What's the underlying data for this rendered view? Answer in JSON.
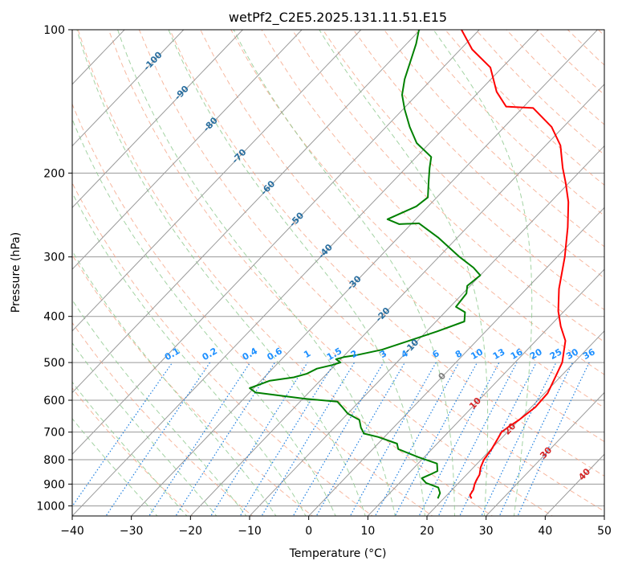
{
  "chart_data": {
    "type": "line",
    "title": "wetPf2_C2E5.2025.131.11.51.E15",
    "xlabel": "Temperature (°C)",
    "ylabel": "Pressure (hPa)",
    "xlim": [
      -40,
      50
    ],
    "ylim": [
      1050,
      100
    ],
    "y_scale": "log",
    "grid": true,
    "x_ticks": [
      "−40",
      "−30",
      "−20",
      "−10",
      "0",
      "10",
      "20",
      "30",
      "40",
      "50"
    ],
    "x_tick_values": [
      -40,
      -30,
      -20,
      -10,
      0,
      10,
      20,
      30,
      40,
      50
    ],
    "y_ticks": [
      "100",
      "200",
      "300",
      "400",
      "500",
      "600",
      "700",
      "800",
      "900",
      "1000"
    ],
    "y_tick_values": [
      100,
      200,
      300,
      400,
      500,
      600,
      700,
      800,
      900,
      1000
    ],
    "colors": {
      "temperature": "#ff0000",
      "dewpoint": "#008000",
      "isotherm": "#9a9a9a",
      "dry_adiabat": "#f4a080",
      "moist_adiabat": "#8cc88c",
      "mixing_ratio": "#1e7fe0",
      "isotherm_label": "#2a6fa0",
      "mixing_label": "#1e90ff",
      "warm_label": "#d62728",
      "zero_label": "#808080"
    },
    "series": [
      {
        "key": "temperature",
        "points": [
          [
            24.7,
            965
          ],
          [
            23.9,
            950
          ],
          [
            23.6,
            925
          ],
          [
            22.9,
            900
          ],
          [
            22.5,
            880
          ],
          [
            22.2,
            860
          ],
          [
            21.2,
            830
          ],
          [
            20.5,
            800
          ],
          [
            20.1,
            760
          ],
          [
            19.4,
            720
          ],
          [
            19.0,
            700
          ],
          [
            19.4,
            680
          ],
          [
            20.0,
            660
          ],
          [
            20.7,
            620
          ],
          [
            20.5,
            580
          ],
          [
            19.3,
            540
          ],
          [
            18.0,
            500
          ],
          [
            15.0,
            450
          ],
          [
            11.9,
            420
          ],
          [
            9.0,
            390
          ],
          [
            5.5,
            350
          ],
          [
            1.3,
            300
          ],
          [
            -3.0,
            260
          ],
          [
            -7.0,
            230
          ],
          [
            -10.5,
            210
          ],
          [
            -13.5,
            195
          ],
          [
            -17.5,
            175
          ],
          [
            -22.0,
            160
          ],
          [
            -28.2,
            146
          ],
          [
            -33.0,
            145
          ],
          [
            -37.0,
            135
          ],
          [
            -42.0,
            120
          ],
          [
            -48.0,
            110
          ],
          [
            -53.0,
            100
          ]
        ]
      },
      {
        "key": "dewpoint",
        "points": [
          [
            19.0,
            965
          ],
          [
            18.5,
            940
          ],
          [
            17.3,
            915
          ],
          [
            14.5,
            895
          ],
          [
            13.0,
            875
          ],
          [
            13.8,
            860
          ],
          [
            14.5,
            845
          ],
          [
            13.2,
            815
          ],
          [
            9.0,
            790
          ],
          [
            4.3,
            760
          ],
          [
            3.2,
            740
          ],
          [
            -1.0,
            717
          ],
          [
            -4.0,
            705
          ],
          [
            -5.5,
            685
          ],
          [
            -7.0,
            660
          ],
          [
            -10.0,
            640
          ],
          [
            -12.0,
            620
          ],
          [
            -13.7,
            604
          ],
          [
            -20.0,
            595
          ],
          [
            -29.0,
            578
          ],
          [
            -30.7,
            566
          ],
          [
            -28.5,
            546
          ],
          [
            -25.0,
            537
          ],
          [
            -23.4,
            528
          ],
          [
            -22.5,
            515
          ],
          [
            -20.5,
            506
          ],
          [
            -19.5,
            500
          ],
          [
            -20.8,
            492
          ],
          [
            -19.8,
            487
          ],
          [
            -17.9,
            482
          ],
          [
            -14.6,
            470
          ],
          [
            -11.6,
            451
          ],
          [
            -8.2,
            430
          ],
          [
            -5.2,
            410
          ],
          [
            -6.6,
            392
          ],
          [
            -9.0,
            382
          ],
          [
            -9.4,
            358
          ],
          [
            -10.5,
            345
          ],
          [
            -10.0,
            328
          ],
          [
            -12.4,
            316
          ],
          [
            -16.5,
            300
          ],
          [
            -23.3,
            273
          ],
          [
            -28.8,
            255
          ],
          [
            -32.0,
            256
          ],
          [
            -34.8,
            250
          ],
          [
            -32.0,
            235
          ],
          [
            -31.5,
            225
          ],
          [
            -34.0,
            208
          ],
          [
            -36.0,
            195
          ],
          [
            -37.5,
            185
          ],
          [
            -42.2,
            173
          ],
          [
            -46.0,
            160
          ],
          [
            -49.7,
            147
          ],
          [
            -52.5,
            137
          ],
          [
            -54.6,
            127
          ],
          [
            -56.8,
            115
          ],
          [
            -58.4,
            107
          ],
          [
            -60.2,
            100
          ]
        ]
      }
    ],
    "isotherm_labels": [
      "-100",
      "-90",
      "-80",
      "-70",
      "-60",
      "-50",
      "-40",
      "-30",
      "-20",
      "-10"
    ],
    "isotherm_label_values": [
      -100,
      -90,
      -80,
      -70,
      -60,
      -50,
      -40,
      -30,
      -20,
      -10
    ],
    "mixing_ratio_labels": [
      "0.1",
      "0.2",
      "0.4",
      "0.6",
      "1",
      "1.5",
      "2",
      "3",
      "4",
      "6",
      "8",
      "10",
      "13",
      "16",
      "20",
      "25",
      "30",
      "36"
    ],
    "mixing_ratio_values": [
      0.1,
      0.2,
      0.4,
      0.6,
      1,
      1.5,
      2,
      3,
      4,
      6,
      8,
      10,
      13,
      16,
      20,
      25,
      30,
      36
    ],
    "zero_label": "0",
    "warm_labels": [
      "10",
      "20",
      "30",
      "40"
    ],
    "warm_label_values": [
      10,
      20,
      30,
      40
    ]
  }
}
